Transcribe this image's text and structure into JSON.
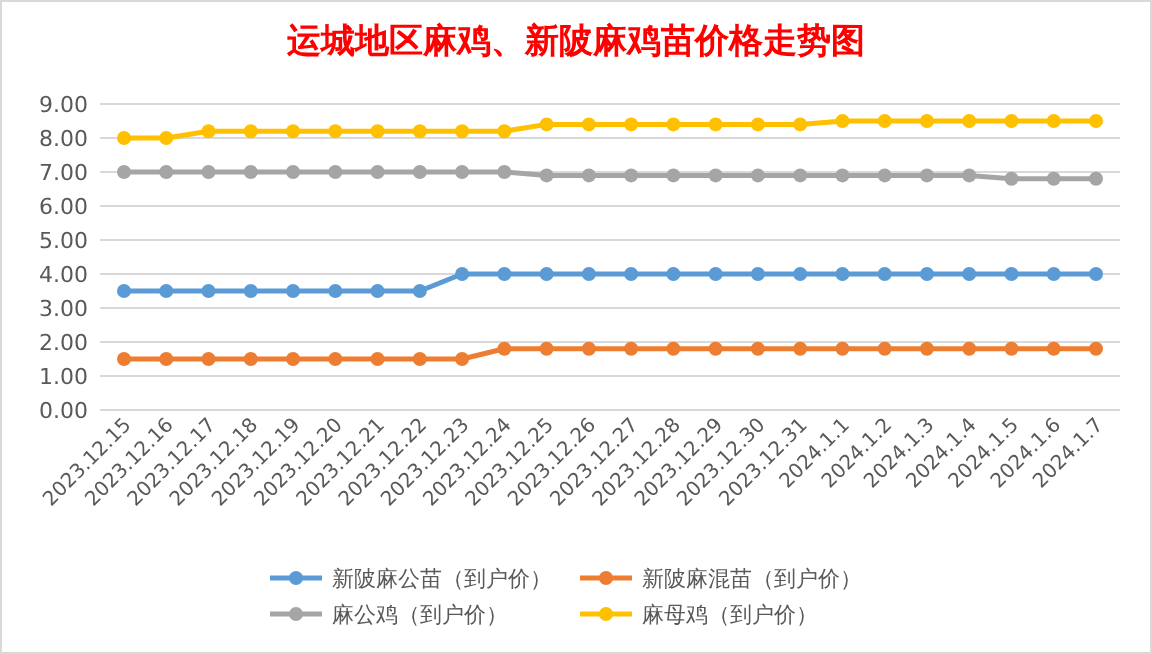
{
  "chart_data": {
    "type": "line",
    "title": "运城地区麻鸡、新陂麻鸡苗价格走势图",
    "categories": [
      "2023.12.15",
      "2023.12.16",
      "2023.12.17",
      "2023.12.18",
      "2023.12.19",
      "2023.12.20",
      "2023.12.21",
      "2023.12.22",
      "2023.12.23",
      "2023.12.24",
      "2023.12.25",
      "2023.12.26",
      "2023.12.27",
      "2023.12.28",
      "2023.12.29",
      "2023.12.30",
      "2023.12.31",
      "2024.1.1",
      "2024.1.2",
      "2024.1.3",
      "2024.1.4",
      "2024.1.5",
      "2024.1.6",
      "2024.1.7"
    ],
    "series": [
      {
        "name": "新陂麻公苗（到户价）",
        "color": "#5b9bd5",
        "values": [
          3.5,
          3.5,
          3.5,
          3.5,
          3.5,
          3.5,
          3.5,
          3.5,
          4,
          4,
          4,
          4,
          4,
          4,
          4,
          4,
          4,
          4,
          4,
          4,
          4,
          4,
          4,
          4
        ]
      },
      {
        "name": "新陂麻混苗（到户价）",
        "color": "#ed7d31",
        "values": [
          1.5,
          1.5,
          1.5,
          1.5,
          1.5,
          1.5,
          1.5,
          1.5,
          1.5,
          1.8,
          1.8,
          1.8,
          1.8,
          1.8,
          1.8,
          1.8,
          1.8,
          1.8,
          1.8,
          1.8,
          1.8,
          1.8,
          1.8,
          1.8
        ]
      },
      {
        "name": "麻公鸡（到户价）",
        "color": "#a5a5a5",
        "values": [
          7,
          7,
          7,
          7,
          7,
          7,
          7,
          7,
          7,
          7,
          6.9,
          6.9,
          6.9,
          6.9,
          6.9,
          6.9,
          6.9,
          6.9,
          6.9,
          6.9,
          6.9,
          6.8,
          6.8,
          6.8
        ]
      },
      {
        "name": "麻母鸡（到户价）",
        "color": "#ffc000",
        "values": [
          8,
          8,
          8.2,
          8.2,
          8.2,
          8.2,
          8.2,
          8.2,
          8.2,
          8.2,
          8.4,
          8.4,
          8.4,
          8.4,
          8.4,
          8.4,
          8.4,
          8.5,
          8.5,
          8.5,
          8.5,
          8.5,
          8.5,
          8.5
        ]
      }
    ],
    "ylim": [
      0,
      9
    ],
    "yticks": [
      {
        "value": 0,
        "label": "0.00"
      },
      {
        "value": 1,
        "label": "1.00"
      },
      {
        "value": 2,
        "label": "2.00"
      },
      {
        "value": 3,
        "label": "3.00"
      },
      {
        "value": 4,
        "label": "4.00"
      },
      {
        "value": 5,
        "label": "5.00"
      },
      {
        "value": 6,
        "label": "6.00"
      },
      {
        "value": 7,
        "label": "7.00"
      },
      {
        "value": 8,
        "label": "8.00"
      },
      {
        "value": 9,
        "label": "9.00"
      }
    ],
    "grid": "y",
    "legend": "bottom",
    "marker": "circle",
    "line_style": "solid"
  }
}
